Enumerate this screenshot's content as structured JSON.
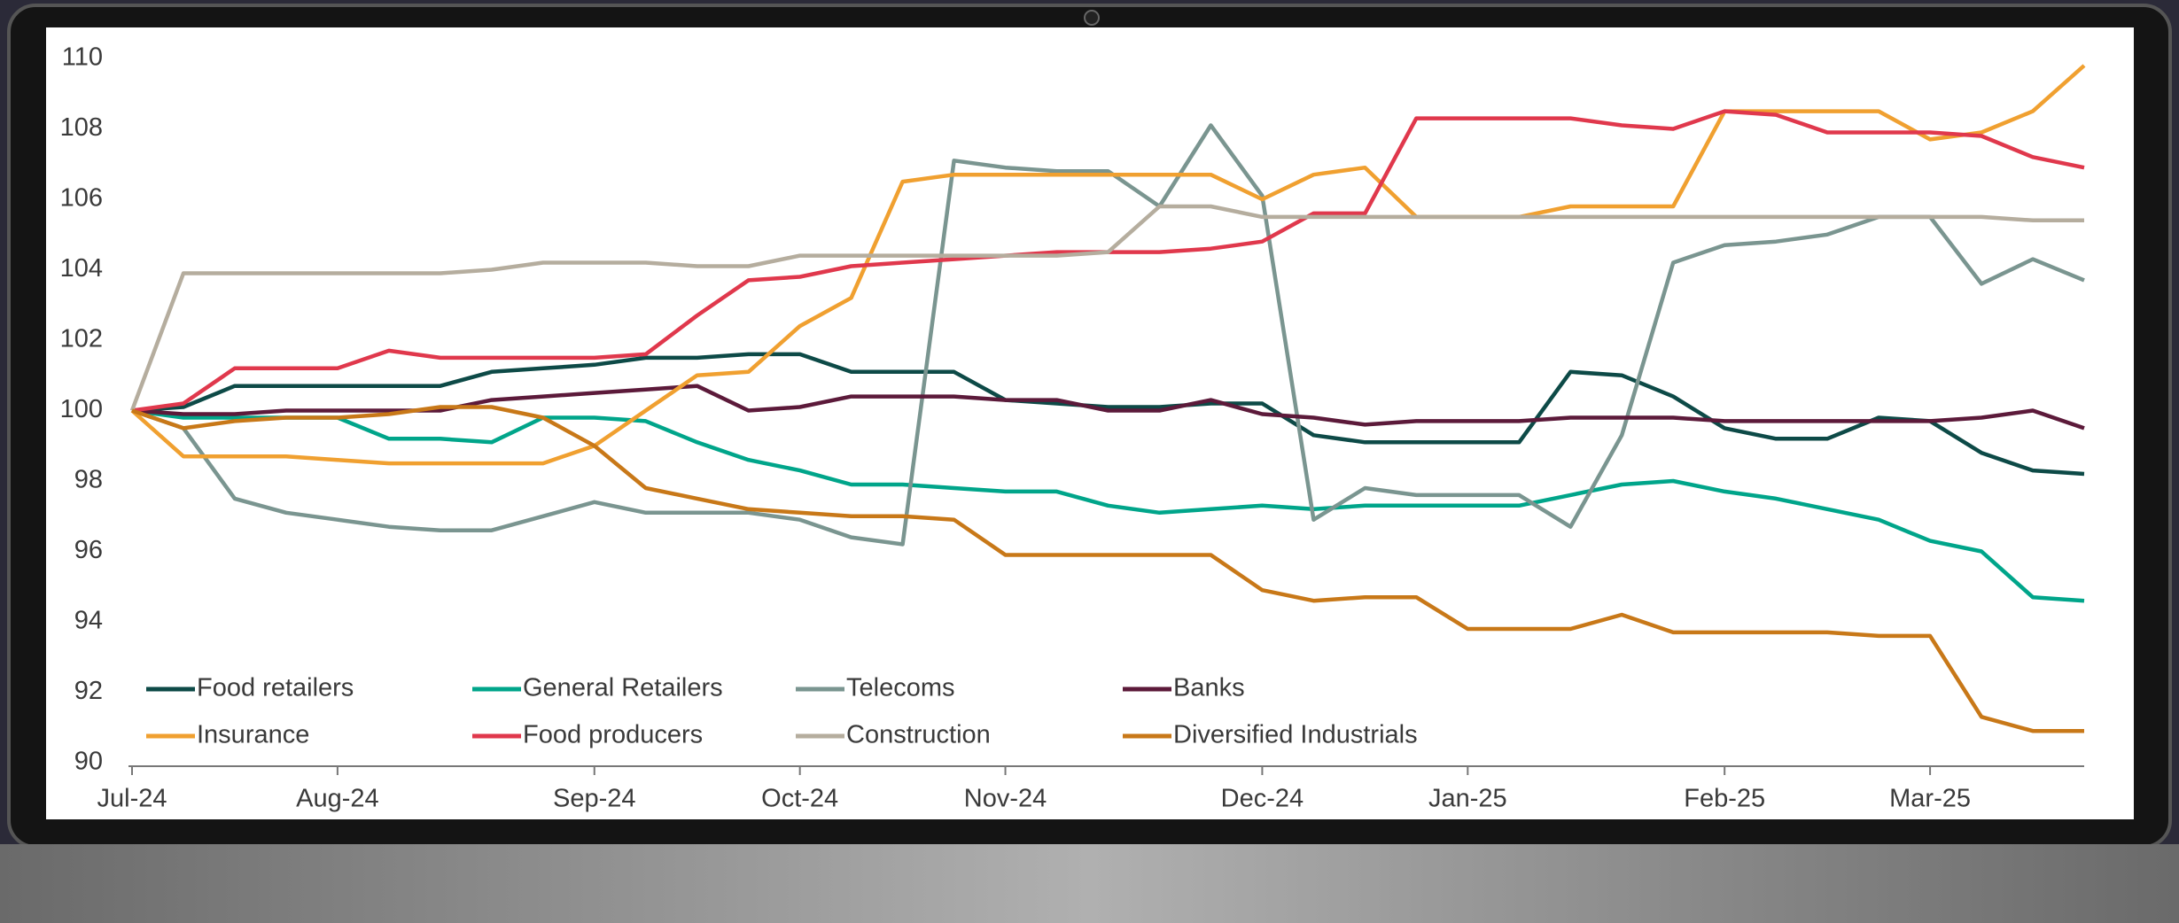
{
  "chart_data": {
    "type": "line",
    "categories": [
      "Jul-24",
      null,
      null,
      null,
      "Aug-24",
      null,
      null,
      null,
      null,
      "Sep-24",
      null,
      null,
      null,
      "Oct-24",
      null,
      null,
      null,
      "Nov-24",
      null,
      null,
      null,
      null,
      "Dec-24",
      null,
      null,
      null,
      "Jan-25",
      null,
      null,
      null,
      null,
      "Feb-25",
      null,
      null,
      null,
      "Mar-25",
      null,
      null,
      null
    ],
    "ylim": [
      90,
      110
    ],
    "yticks": [
      90,
      92,
      94,
      96,
      98,
      100,
      102,
      104,
      106,
      108,
      110
    ],
    "grid": false,
    "series": [
      {
        "name": "Food retailers",
        "color": "#0d4a47",
        "values": [
          100,
          100.1,
          100.7,
          100.7,
          100.7,
          100.7,
          100.7,
          101.1,
          101.2,
          101.3,
          101.5,
          101.5,
          101.6,
          101.6,
          101.1,
          101.1,
          101.1,
          100.3,
          100.2,
          100.1,
          100.1,
          100.2,
          100.2,
          99.3,
          99.1,
          99.1,
          99.1,
          99.1,
          101.1,
          101,
          100.4,
          99.5,
          99.2,
          99.2,
          99.8,
          99.7,
          98.8,
          98.3,
          98.2
        ]
      },
      {
        "name": "General Retailers",
        "color": "#00a58a",
        "values": [
          100,
          99.8,
          99.8,
          99.8,
          99.8,
          99.2,
          99.2,
          99.1,
          99.8,
          99.8,
          99.7,
          99.1,
          98.6,
          98.3,
          97.9,
          97.9,
          97.8,
          97.7,
          97.7,
          97.3,
          97.1,
          97.2,
          97.3,
          97.2,
          97.3,
          97.3,
          97.3,
          97.3,
          97.6,
          97.9,
          98,
          97.7,
          97.5,
          97.2,
          96.9,
          96.3,
          96,
          94.7,
          94.6
        ]
      },
      {
        "name": "Telecoms",
        "color": "#7a9590",
        "values": [
          100,
          99.5,
          97.5,
          97.1,
          96.9,
          96.7,
          96.6,
          96.6,
          97,
          97.4,
          97.1,
          97.1,
          97.1,
          96.9,
          96.4,
          96.2,
          107.1,
          106.9,
          106.8,
          106.8,
          105.8,
          108.1,
          106.1,
          96.9,
          97.8,
          97.6,
          97.6,
          97.6,
          96.7,
          99.3,
          104.2,
          104.7,
          104.8,
          105,
          105.5,
          105.5,
          103.6,
          104.3,
          103.7
        ]
      },
      {
        "name": "Banks",
        "color": "#5c1a3a",
        "values": [
          100,
          99.9,
          99.9,
          100,
          100,
          100,
          100,
          100.3,
          100.4,
          100.5,
          100.6,
          100.7,
          100,
          100.1,
          100.4,
          100.4,
          100.4,
          100.3,
          100.3,
          100,
          100,
          100.3,
          99.9,
          99.8,
          99.6,
          99.7,
          99.7,
          99.7,
          99.8,
          99.8,
          99.8,
          99.7,
          99.7,
          99.7,
          99.7,
          99.7,
          99.8,
          100,
          99.5
        ]
      },
      {
        "name": "Insurance",
        "color": "#f0a030",
        "values": [
          100,
          98.7,
          98.7,
          98.7,
          98.6,
          98.5,
          98.5,
          98.5,
          98.5,
          99,
          100,
          101,
          101.1,
          102.4,
          103.2,
          106.5,
          106.7,
          106.7,
          106.7,
          106.7,
          106.7,
          106.7,
          106,
          106.7,
          106.9,
          105.5,
          105.5,
          105.5,
          105.8,
          105.8,
          105.8,
          108.5,
          108.5,
          108.5,
          108.5,
          107.7,
          107.9,
          108.5,
          109.8
        ]
      },
      {
        "name": "Food producers",
        "color": "#e0384c",
        "values": [
          100,
          100.2,
          101.2,
          101.2,
          101.2,
          101.7,
          101.5,
          101.5,
          101.5,
          101.5,
          101.6,
          102.7,
          103.7,
          103.8,
          104.1,
          104.2,
          104.3,
          104.4,
          104.5,
          104.5,
          104.5,
          104.6,
          104.8,
          105.6,
          105.6,
          108.3,
          108.3,
          108.3,
          108.3,
          108.1,
          108,
          108.5,
          108.4,
          107.9,
          107.9,
          107.9,
          107.8,
          107.2,
          106.9
        ]
      },
      {
        "name": "Construction",
        "color": "#b5ad9e",
        "values": [
          100,
          103.9,
          103.9,
          103.9,
          103.9,
          103.9,
          103.9,
          104,
          104.2,
          104.2,
          104.2,
          104.1,
          104.1,
          104.4,
          104.4,
          104.4,
          104.4,
          104.4,
          104.4,
          104.5,
          105.8,
          105.8,
          105.5,
          105.5,
          105.5,
          105.5,
          105.5,
          105.5,
          105.5,
          105.5,
          105.5,
          105.5,
          105.5,
          105.5,
          105.5,
          105.5,
          105.5,
          105.4,
          105.4
        ]
      },
      {
        "name": "Diversified Industrials",
        "color": "#c87818",
        "values": [
          100,
          99.5,
          99.7,
          99.8,
          99.8,
          99.9,
          100.1,
          100.1,
          99.8,
          99,
          97.8,
          97.5,
          97.2,
          97.1,
          97,
          97,
          96.9,
          95.9,
          95.9,
          95.9,
          95.9,
          95.9,
          94.9,
          94.6,
          94.7,
          94.7,
          93.8,
          93.8,
          93.8,
          94.2,
          93.7,
          93.7,
          93.7,
          93.7,
          93.6,
          93.6,
          91.3,
          90.9,
          90.9
        ]
      }
    ]
  }
}
